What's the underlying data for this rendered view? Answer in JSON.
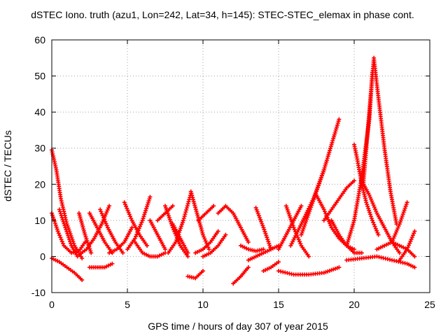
{
  "chart_data": {
    "type": "scatter",
    "title": "dSTEC Iono. truth (azu1, Lon=242, Lat=34, h=145): STEC-STEC_elemax in phase cont.",
    "xlabel": "GPS time / hours of day 307 of year 2015",
    "ylabel": "dSTEC  / TECUs",
    "xlim": [
      0,
      25
    ],
    "ylim": [
      -10,
      60
    ],
    "xticks": [
      0,
      5,
      10,
      15,
      20,
      25
    ],
    "yticks": [
      -10,
      0,
      10,
      20,
      30,
      40,
      50,
      60
    ],
    "grid": true,
    "marker_color": "#ff0000",
    "series": [
      {
        "x": [
          0.0,
          0.3,
          0.6,
          1.0,
          1.5,
          2.0
        ],
        "y": [
          29.5,
          24,
          16,
          9,
          3,
          -0.5
        ]
      },
      {
        "x": [
          0.0,
          0.4,
          0.8,
          1.3,
          1.8,
          2.2
        ],
        "y": [
          12,
          7,
          3,
          1,
          1.5,
          4
        ]
      },
      {
        "x": [
          0.0,
          0.5,
          1.0,
          1.5,
          2.0
        ],
        "y": [
          -0.5,
          -1.5,
          -3,
          -4.5,
          -6.5
        ]
      },
      {
        "x": [
          0.5,
          0.9,
          1.3,
          1.7
        ],
        "y": [
          13,
          8,
          3,
          0
        ]
      },
      {
        "x": [
          1.8,
          2.3,
          2.8,
          3.3,
          3.8
        ],
        "y": [
          0.5,
          2,
          5,
          9,
          14
        ]
      },
      {
        "x": [
          1.8,
          2.2,
          2.6
        ],
        "y": [
          12,
          6,
          1
        ]
      },
      {
        "x": [
          2.5,
          3.0,
          3.5,
          4.0
        ],
        "y": [
          12,
          8,
          4,
          1
        ]
      },
      {
        "x": [
          2.5,
          3.0,
          3.5,
          4.0
        ],
        "y": [
          -3,
          -3,
          -3,
          -2
        ]
      },
      {
        "x": [
          3.2,
          3.7,
          4.2,
          4.7
        ],
        "y": [
          13,
          8,
          4,
          1
        ]
      },
      {
        "x": [
          3.8,
          4.3,
          4.8,
          5.3
        ],
        "y": [
          1,
          2,
          4,
          8
        ]
      },
      {
        "x": [
          4.8,
          5.3,
          5.8,
          6.3
        ],
        "y": [
          15,
          10,
          6,
          3
        ]
      },
      {
        "x": [
          5.0,
          5.5,
          6.0,
          6.5
        ],
        "y": [
          2,
          5,
          10,
          16.5
        ]
      },
      {
        "x": [
          5.5,
          6.0,
          6.5,
          7.0,
          7.5
        ],
        "y": [
          4,
          1,
          0,
          0,
          1
        ]
      },
      {
        "x": [
          6.5,
          7.0,
          7.5
        ],
        "y": [
          10,
          6,
          2
        ]
      },
      {
        "x": [
          7.0,
          7.5,
          8.0
        ],
        "y": [
          10,
          12,
          14
        ]
      },
      {
        "x": [
          7.5,
          8.0,
          8.5,
          9.0
        ],
        "y": [
          14,
          8,
          3,
          0
        ]
      },
      {
        "x": [
          7.7,
          8.2,
          8.7,
          9.2
        ],
        "y": [
          1,
          4,
          10,
          17.5
        ]
      },
      {
        "x": [
          8.0,
          8.5,
          9.0
        ],
        "y": [
          9,
          5,
          1
        ]
      },
      {
        "x": [
          9.2,
          9.6,
          10.0,
          10.4
        ],
        "y": [
          18,
          12,
          6,
          2
        ]
      },
      {
        "x": [
          9.0,
          9.5,
          10.0
        ],
        "y": [
          -5.5,
          -6,
          -4
        ]
      },
      {
        "x": [
          9.7,
          10.2,
          10.7
        ],
        "y": [
          10,
          12,
          14
        ]
      },
      {
        "x": [
          9.5,
          10.0,
          10.5,
          11.0
        ],
        "y": [
          1,
          2,
          4,
          7
        ]
      },
      {
        "x": [
          10.0,
          10.5,
          11.0,
          11.5
        ],
        "y": [
          0,
          1,
          3,
          6
        ]
      },
      {
        "x": [
          11.0,
          11.5,
          12.0,
          12.5,
          13.0
        ],
        "y": [
          12,
          14,
          12,
          8,
          4
        ]
      },
      {
        "x": [
          12.0,
          12.5,
          13.0
        ],
        "y": [
          -7.5,
          -5.5,
          -3
        ]
      },
      {
        "x": [
          12.5,
          13.0,
          13.5,
          14.0
        ],
        "y": [
          3,
          2,
          1.5,
          2
        ]
      },
      {
        "x": [
          13.0,
          13.5,
          14.0,
          14.5,
          15.0
        ],
        "y": [
          -1,
          0,
          1,
          2,
          3
        ]
      },
      {
        "x": [
          13.5,
          14.0,
          14.5
        ],
        "y": [
          13.5,
          8,
          2
        ]
      },
      {
        "x": [
          14.0,
          14.5,
          15.0
        ],
        "y": [
          -4,
          -3,
          -1.5
        ]
      },
      {
        "x": [
          15.0,
          15.5,
          16.0,
          16.5
        ],
        "y": [
          2,
          6,
          10,
          14
        ]
      },
      {
        "x": [
          15.5,
          16.0,
          16.5,
          17.0
        ],
        "y": [
          14,
          8,
          3,
          0
        ]
      },
      {
        "x": [
          16.5,
          17.0,
          17.5,
          18.0
        ],
        "y": [
          6,
          12,
          18,
          24
        ]
      },
      {
        "x": [
          15.8,
          16.5,
          17.3,
          18.0,
          18.5,
          19.0
        ],
        "y": [
          3,
          9,
          16,
          24,
          31,
          38
        ]
      },
      {
        "x": [
          17.5,
          18.0,
          18.5,
          19.0,
          19.5,
          20.0
        ],
        "y": [
          17,
          13,
          8,
          5,
          3,
          2
        ]
      },
      {
        "x": [
          15.0,
          16.0,
          17.0,
          18.0,
          19.0
        ],
        "y": [
          -4,
          -5,
          -5,
          -4.5,
          -3
        ]
      },
      {
        "x": [
          18.0,
          18.5,
          19.0,
          19.5,
          20.0
        ],
        "y": [
          10,
          13,
          16,
          19,
          21
        ]
      },
      {
        "x": [
          18.5,
          19.0,
          19.5,
          20.0,
          20.5
        ],
        "y": [
          10,
          6,
          3,
          1,
          1
        ]
      },
      {
        "x": [
          19.5,
          20.0,
          20.5,
          21.0,
          21.2
        ],
        "y": [
          3,
          10,
          22,
          38,
          51
        ]
      },
      {
        "x": [
          20.0,
          20.2,
          20.5,
          20.8,
          21.2,
          21.6
        ],
        "y": [
          31,
          27,
          20,
          15,
          10,
          6
        ]
      },
      {
        "x": [
          20.6,
          21.0,
          21.3,
          21.6,
          22.0,
          22.4,
          22.8
        ],
        "y": [
          20,
          40,
          55,
          44,
          30,
          18,
          9
        ]
      },
      {
        "x": [
          20.5,
          21.0,
          21.5,
          22.0,
          22.5,
          23.0
        ],
        "y": [
          21,
          17,
          12,
          8,
          4,
          1
        ]
      },
      {
        "x": [
          19.5,
          20.5,
          21.5,
          22.5,
          23.5,
          24.0
        ],
        "y": [
          -1,
          -0.5,
          0,
          -1,
          -2,
          -3
        ]
      },
      {
        "x": [
          21.5,
          22.0,
          22.5,
          23.0,
          23.5,
          24.0
        ],
        "y": [
          2,
          3,
          4,
          3,
          2,
          0
        ]
      },
      {
        "x": [
          22.5,
          23.0,
          23.5
        ],
        "y": [
          4,
          9,
          15
        ]
      },
      {
        "x": [
          23.0,
          23.5,
          24.0
        ],
        "y": [
          -1,
          2,
          7
        ]
      }
    ]
  }
}
